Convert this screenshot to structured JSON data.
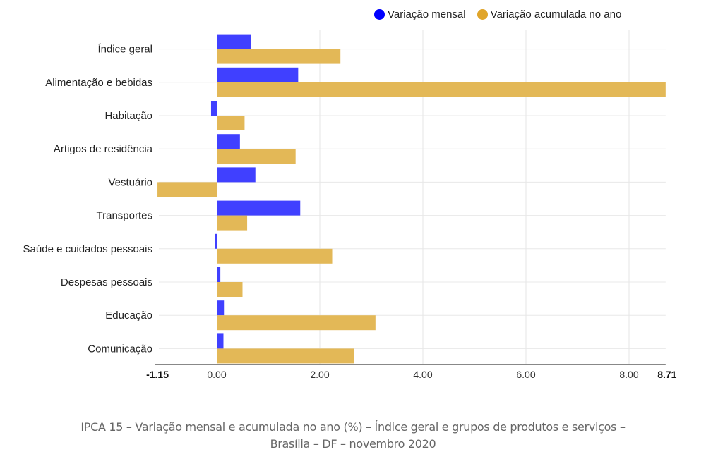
{
  "legend": {
    "series_monthly": "Variação mensal",
    "series_accumulated": "Variação acumulada no ano",
    "color_monthly": "#4040ff",
    "color_accumulated": "#e3b857"
  },
  "caption": {
    "line1": "IPCA 15 – Variação mensal e acumulada no ano (%) – Índice geral e grupos de produtos e serviços –",
    "line2": "Brasília – DF – novembro 2020"
  },
  "chart_data": {
    "type": "bar",
    "orientation": "horizontal",
    "title": "IPCA 15 – Variação mensal e acumulada no ano (%) – Índice geral e grupos de produtos e serviços – Brasília – DF – novembro 2020",
    "xlabel": "",
    "ylabel": "",
    "categories": [
      "Índice geral",
      "Alimentação e bebidas",
      "Habitação",
      "Artigos de residência",
      "Vestuário",
      "Transportes",
      "Saúde e cuidados pessoais",
      "Despesas pessoais",
      "Educação",
      "Comunicação"
    ],
    "series": [
      {
        "name": "Variação mensal",
        "color": "#4040ff",
        "values": [
          0.66,
          1.58,
          -0.11,
          0.45,
          0.75,
          1.62,
          -0.03,
          0.07,
          0.14,
          0.13
        ]
      },
      {
        "name": "Variação acumulada no ano",
        "color": "#e3b857",
        "values": [
          2.4,
          8.71,
          0.54,
          1.53,
          -1.15,
          0.59,
          2.24,
          0.5,
          3.08,
          2.66
        ]
      }
    ],
    "xlim": [
      -1.15,
      8.71
    ],
    "xticks": [
      "-1.15",
      "0.00",
      "2.00",
      "4.00",
      "6.00",
      "8.00",
      "8.71"
    ],
    "xtick_values": [
      -1.15,
      0,
      2,
      4,
      6,
      8,
      8.71
    ],
    "bold_ticks": [
      "-1.15",
      "8.71"
    ],
    "grid": true,
    "legend_position": "top"
  }
}
